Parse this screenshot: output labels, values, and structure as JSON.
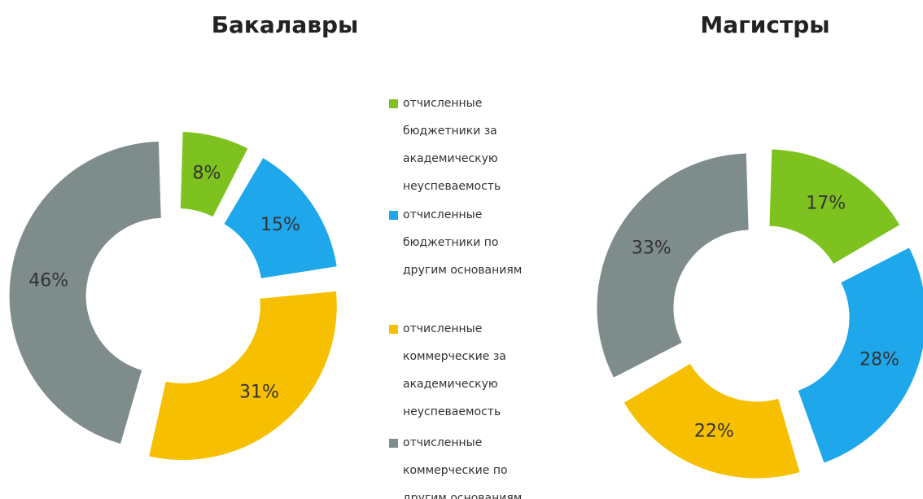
{
  "chart_data": [
    {
      "type": "pie",
      "title": "Бакалавры",
      "values": [
        8,
        15,
        31,
        46
      ],
      "value_labels": [
        "8%",
        "15%",
        "31%",
        "46%"
      ]
    },
    {
      "type": "pie",
      "title": "Магистры",
      "values": [
        17,
        28,
        22,
        33
      ],
      "value_labels": [
        "17%",
        "28%",
        "22%",
        "33%"
      ]
    }
  ],
  "legend": {
    "items": [
      {
        "name": "отчисленные бюджетники за академическую неуспеваемость",
        "color": "#7dc21e"
      },
      {
        "name": "отчисленные бюджетники по другим основаниям",
        "color": "#1ea7ea"
      },
      {
        "name": "отчисленные коммерческие за академическую неуспеваемость",
        "color": "#f6c000"
      },
      {
        "name": "отчисленные коммерческие по другим основаниям",
        "color": "#7f8c8c"
      }
    ]
  }
}
